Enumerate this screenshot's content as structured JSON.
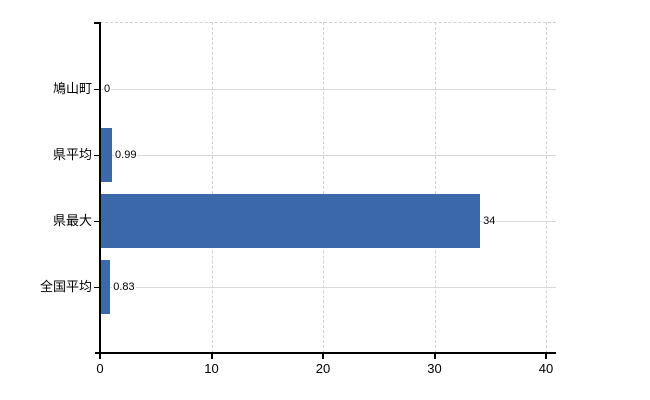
{
  "chart_data": {
    "type": "bar",
    "orientation": "horizontal",
    "title": "",
    "xlabel": "",
    "ylabel": "",
    "categories": [
      "鳩山町",
      "県平均",
      "県最大",
      "全国平均"
    ],
    "values": [
      0,
      0.99,
      34,
      0.83
    ],
    "value_labels": [
      "0",
      "0.99",
      "34",
      "0.83"
    ],
    "xlim": [
      0,
      40
    ],
    "x_ticks": [
      0,
      10,
      20,
      30,
      40
    ],
    "x_tick_labels": [
      "0",
      "10",
      "20",
      "30",
      "40"
    ],
    "grid": true,
    "legend": false,
    "bar_color": "#3a68a9",
    "gridline_color": "#d9d9d9",
    "dashed_gridline_color": "#d2d2d2",
    "axis_color": "#000000",
    "text_color": "#000000",
    "background_color": "#ffffff"
  }
}
